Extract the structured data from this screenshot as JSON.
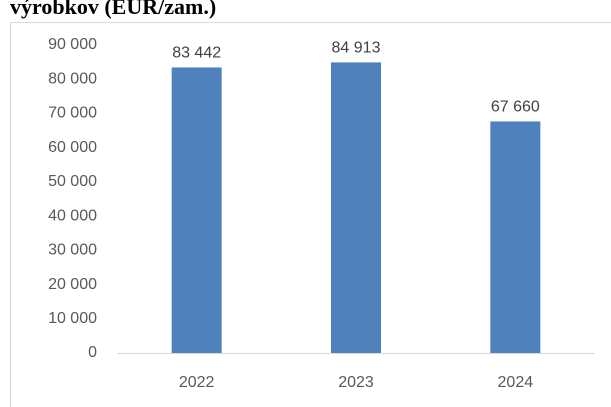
{
  "chart_data": {
    "type": "bar",
    "title": "výrobkov (EUR/zam.)",
    "categories": [
      "2022",
      "2023",
      "2024"
    ],
    "values": [
      83442,
      84913,
      67660
    ],
    "value_labels": [
      "83 442",
      "84 913",
      "67 660"
    ],
    "color": "#4f81bd",
    "ylim": [
      0,
      90000
    ],
    "yticks": [
      0,
      {
        "value": 10000,
        "label": "10 000"
      },
      {
        "value": 20000,
        "label": "20 000"
      },
      {
        "value": 30000,
        "label": "30 000"
      },
      {
        "value": 40000,
        "label": "40 000"
      },
      {
        "value": 50000,
        "label": "50 000"
      },
      {
        "value": 60000,
        "label": "60 000"
      },
      {
        "value": 70000,
        "label": "70 000"
      },
      {
        "value": 80000,
        "label": "80 000"
      },
      {
        "value": 90000,
        "label": "90 000"
      }
    ],
    "grid": false
  }
}
